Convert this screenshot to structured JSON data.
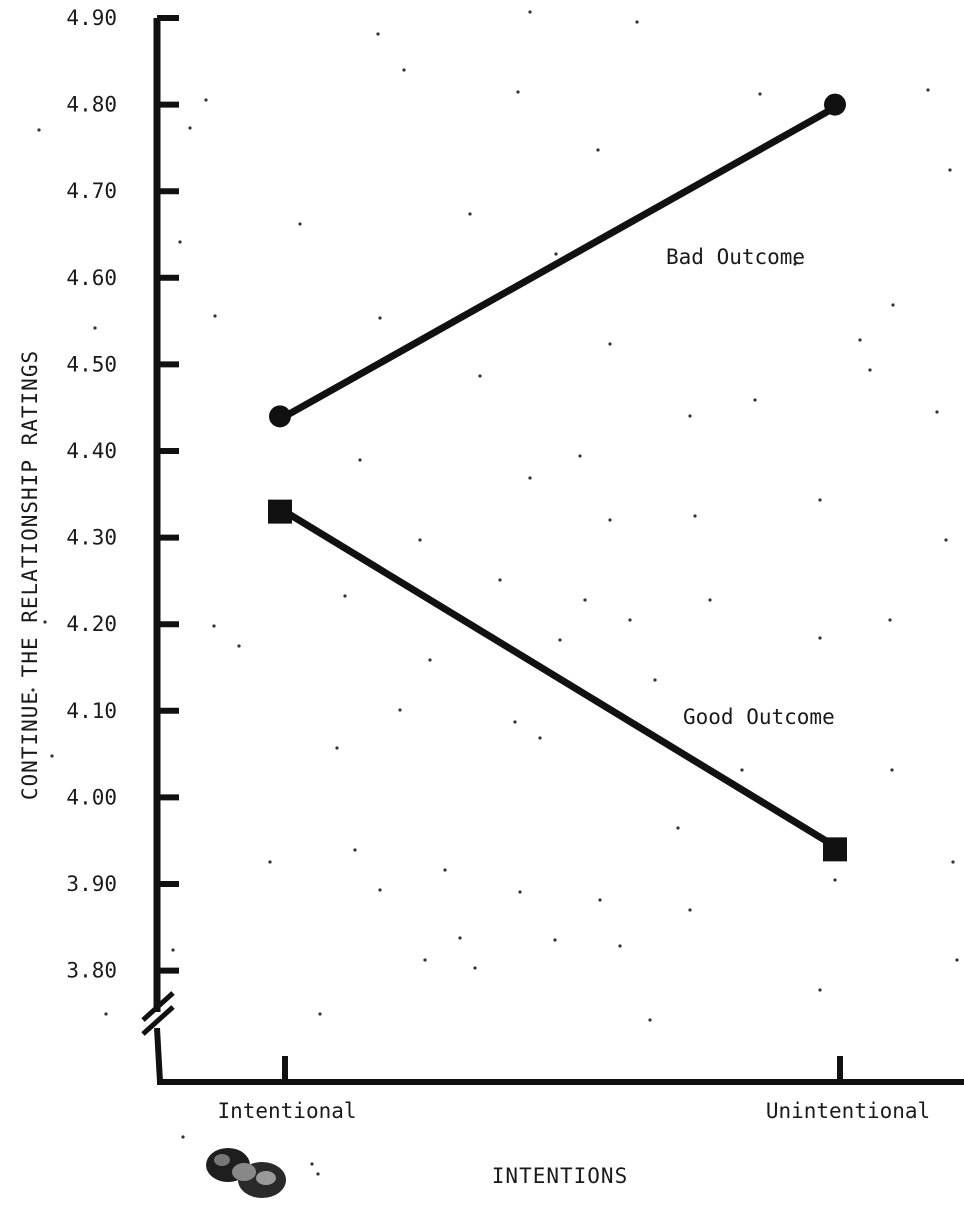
{
  "chart_data": {
    "type": "line",
    "xlabel": "INTENTIONS",
    "ylabel": "CONTINUE THE RELATIONSHIP RATINGS",
    "categories": [
      "Intentional",
      "Unintentional"
    ],
    "category_labels": [
      "Intentional",
      "Unintentional"
    ],
    "ylim": [
      3.75,
      4.9
    ],
    "yticks": [
      4.9,
      4.8,
      4.7,
      4.6,
      4.5,
      4.4,
      4.3,
      4.2,
      4.1,
      4.0,
      3.9,
      3.8
    ],
    "ytick_labels": [
      "4.90",
      "4.80",
      "4.70",
      "4.60",
      "4.50",
      "4.40",
      "4.30",
      "4.20",
      "4.10",
      "4.00",
      "3.90",
      "3.80"
    ],
    "axis_break": true,
    "grid": false,
    "legend": "none",
    "series": [
      {
        "name": "Bad Outcome",
        "marker": "circle",
        "values": [
          4.44,
          4.8
        ]
      },
      {
        "name": "Good Outcome",
        "marker": "square",
        "values": [
          4.33,
          3.94
        ]
      }
    ]
  }
}
